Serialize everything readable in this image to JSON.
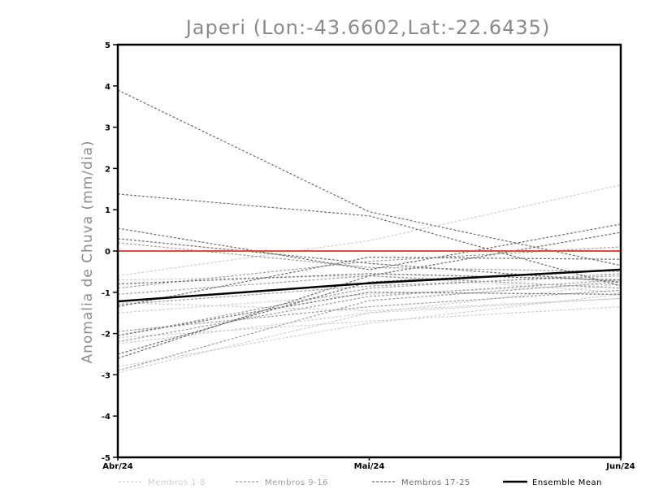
{
  "chart_data": {
    "type": "line",
    "title": "Japeri (Lon:-43.6602,Lat:-22.6435)",
    "ylabel": "Anomalia de Chuva (mm/dia)",
    "xlabel": "",
    "categories": [
      "Abr/24",
      "Mai/24",
      "Jun/24"
    ],
    "ylim": [
      -5,
      5
    ],
    "yticks": [
      -5,
      -4,
      -3,
      -2,
      -1,
      0,
      1,
      2,
      3,
      4,
      5
    ],
    "reference_line": {
      "y": 0,
      "color": "#e8473e"
    },
    "groups": [
      {
        "name": "Membros 1-8",
        "color": "#cfcfcf",
        "style": "dashed",
        "members": [
          [
            -0.6,
            0.25,
            1.6
          ],
          [
            -0.7,
            -0.6,
            -1.0
          ],
          [
            -1.25,
            -1.45,
            -1.15
          ],
          [
            -2.1,
            -1.7,
            -1.35
          ],
          [
            -2.25,
            -1.5,
            -1.15
          ],
          [
            -1.5,
            -1.05,
            -0.8
          ],
          [
            -2.8,
            -1.75,
            -1.05
          ],
          [
            -2.95,
            -1.5,
            -0.8
          ]
        ]
      },
      {
        "name": "Membros 9-16",
        "color": "#9e9e9e",
        "style": "dashed",
        "members": [
          [
            0.2,
            -0.4,
            -0.5
          ],
          [
            -0.9,
            -0.25,
            0.1
          ],
          [
            -1.05,
            -0.6,
            -0.9
          ],
          [
            -2.05,
            -0.9,
            -0.55
          ],
          [
            -2.2,
            -1.1,
            -0.7
          ],
          [
            -1.95,
            -1.35,
            -0.95
          ],
          [
            -2.9,
            -1.2,
            -0.75
          ],
          [
            -1.3,
            -0.85,
            -0.6
          ]
        ]
      },
      {
        "name": "Membros 17-25",
        "color": "#6e6e6e",
        "style": "dashed",
        "members": [
          [
            3.9,
            0.95,
            -0.35
          ],
          [
            1.38,
            0.85,
            -0.85
          ],
          [
            0.55,
            -0.45,
            0.65
          ],
          [
            0.3,
            -0.3,
            -0.75
          ],
          [
            -0.8,
            -0.55,
            -0.7
          ],
          [
            -1.35,
            -0.15,
            -0.2
          ],
          [
            -2.5,
            -0.75,
            -0.45
          ],
          [
            -2.05,
            -1.0,
            -1.05
          ],
          [
            -2.6,
            -0.6,
            0.45
          ]
        ]
      }
    ],
    "ensemble_mean": {
      "name": "Ensemble Mean",
      "color": "#000000",
      "values": [
        -1.22,
        -0.78,
        -0.45
      ]
    }
  }
}
